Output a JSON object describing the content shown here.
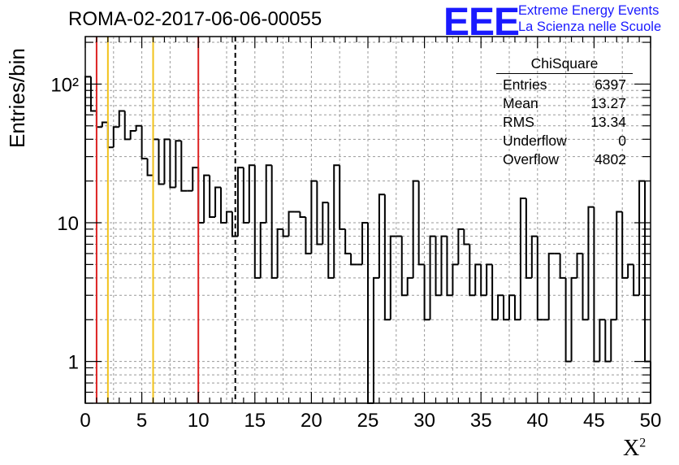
{
  "header": {
    "title": "ROMA-02-2017-06-06-00055",
    "logo": "EEE",
    "logo_line1": "Extreme Energy Events",
    "logo_line2": "La Scienza nelle Scuole"
  },
  "colors": {
    "logo": "#1a1aff",
    "red_lines": "#dd2222",
    "yellow_lines": "#f2c21a",
    "histogram": "#000000",
    "grid": "#999999"
  },
  "stats_box": {
    "title": "ChiSquare",
    "rows": [
      {
        "label": "Entries",
        "value": "6397"
      },
      {
        "label": "Mean",
        "value": "13.27"
      },
      {
        "label": "RMS",
        "value": "13.34"
      },
      {
        "label": "Underflow",
        "value": "0"
      },
      {
        "label": "Overflow",
        "value": "4802"
      }
    ]
  },
  "chart_data": {
    "type": "bar",
    "title": "ROMA-02-2017-06-06-00055",
    "xlabel": "X²",
    "ylabel": "Entries/bin",
    "xlim": [
      0,
      50
    ],
    "ylim": [
      0.5,
      220
    ],
    "yscale": "log",
    "grid": true,
    "bin_width": 0.5,
    "x_tick_labels": [
      "0",
      "5",
      "10",
      "15",
      "20",
      "25",
      "30",
      "35",
      "40",
      "45",
      "50"
    ],
    "y_tick_labels": [
      {
        "value": 1,
        "text": "1"
      },
      {
        "value": 10,
        "text": "10"
      },
      {
        "value": 100,
        "text": "10²"
      }
    ],
    "values": [
      113,
      64,
      49,
      53,
      35,
      49,
      64,
      40,
      46,
      50,
      29,
      22,
      40,
      19,
      40,
      18,
      39,
      17,
      17,
      25,
      10,
      22,
      11,
      18,
      10,
      12,
      8,
      25,
      10,
      26,
      4,
      10,
      26,
      4,
      9,
      8,
      12,
      12,
      11,
      6,
      20,
      7,
      14,
      4,
      26,
      9,
      6,
      5,
      5,
      10,
      0.3,
      4,
      16,
      2,
      8,
      8,
      3,
      4,
      20,
      5,
      2,
      8,
      3,
      8,
      3,
      5,
      9,
      7,
      3,
      5,
      3,
      5,
      2,
      3,
      2,
      3,
      2,
      15,
      4,
      8,
      2,
      2,
      6,
      6,
      4,
      1,
      4,
      6,
      2,
      13,
      1,
      2,
      1,
      2,
      12,
      4,
      5,
      3,
      20,
      1
    ],
    "annotations": [
      {
        "type": "vline",
        "x": 1,
        "color": "red"
      },
      {
        "type": "vline",
        "x": 2,
        "color": "yellow"
      },
      {
        "type": "vline",
        "x": 6,
        "color": "yellow"
      },
      {
        "type": "vline",
        "x": 10,
        "color": "red"
      },
      {
        "type": "vline",
        "x": 13.27,
        "color": "black",
        "style": "dashed"
      }
    ]
  }
}
